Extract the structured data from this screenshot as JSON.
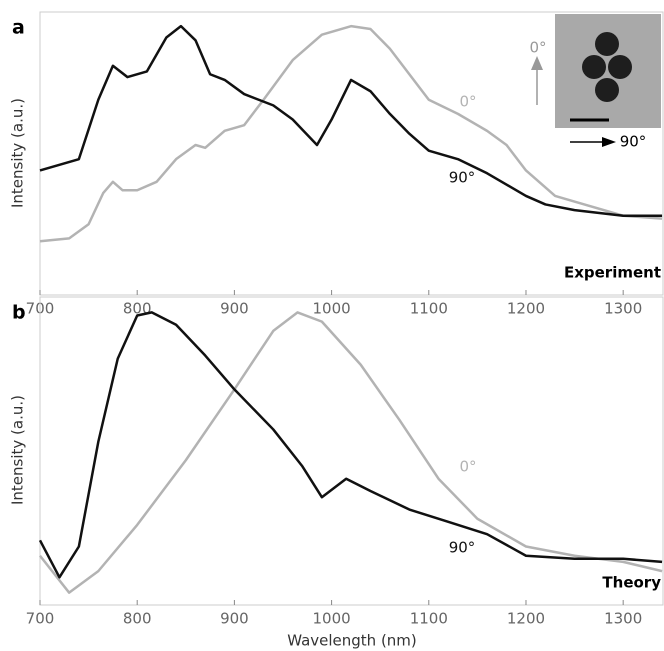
{
  "chart_data": [
    {
      "type": "line",
      "panel_label": "a",
      "annotation": "Experiment",
      "ylabel": "Intensity (a.u.)",
      "xlim": [
        700,
        1342
      ],
      "xticks": [
        700,
        800,
        900,
        1000,
        1100,
        1200,
        1300
      ],
      "ylim": [
        0,
        1
      ],
      "series": [
        {
          "name": "0°",
          "color": "#b3b3b3",
          "x": [
            700,
            730,
            750,
            765,
            775,
            785,
            800,
            820,
            840,
            860,
            870,
            890,
            910,
            930,
            960,
            990,
            1020,
            1040,
            1060,
            1080,
            1100,
            1130,
            1160,
            1180,
            1200,
            1230,
            1260,
            1300,
            1340
          ],
          "values": [
            0.19,
            0.2,
            0.25,
            0.36,
            0.4,
            0.37,
            0.37,
            0.4,
            0.48,
            0.53,
            0.52,
            0.58,
            0.6,
            0.69,
            0.83,
            0.92,
            0.95,
            0.94,
            0.87,
            0.78,
            0.69,
            0.64,
            0.58,
            0.53,
            0.44,
            0.35,
            0.32,
            0.28,
            0.27
          ]
        },
        {
          "name": "90°",
          "color": "#111111",
          "x": [
            700,
            720,
            740,
            760,
            775,
            790,
            810,
            830,
            845,
            860,
            875,
            890,
            910,
            940,
            960,
            985,
            1000,
            1020,
            1040,
            1060,
            1080,
            1100,
            1130,
            1160,
            1200,
            1220,
            1250,
            1300,
            1340
          ],
          "values": [
            0.44,
            0.46,
            0.48,
            0.69,
            0.81,
            0.77,
            0.79,
            0.91,
            0.95,
            0.9,
            0.78,
            0.76,
            0.71,
            0.67,
            0.62,
            0.53,
            0.62,
            0.76,
            0.72,
            0.64,
            0.57,
            0.51,
            0.48,
            0.43,
            0.35,
            0.32,
            0.3,
            0.28,
            0.28
          ]
        }
      ],
      "inset": {
        "vertical_label": "0°",
        "horizontal_label": "90°"
      }
    },
    {
      "type": "line",
      "panel_label": "b",
      "annotation": "Theory",
      "ylabel": "Intensity (a.u.)",
      "xlabel": "Wavelength (nm)",
      "xlim": [
        700,
        1342
      ],
      "xticks": [
        700,
        800,
        900,
        1000,
        1100,
        1200,
        1300
      ],
      "ylim": [
        0,
        1
      ],
      "series": [
        {
          "name": "0°",
          "color": "#b3b3b3",
          "x": [
            700,
            730,
            760,
            800,
            850,
            900,
            940,
            965,
            990,
            1030,
            1070,
            1110,
            1150,
            1200,
            1250,
            1300,
            1340
          ],
          "values": [
            0.16,
            0.04,
            0.11,
            0.26,
            0.47,
            0.7,
            0.89,
            0.95,
            0.92,
            0.78,
            0.6,
            0.41,
            0.28,
            0.19,
            0.16,
            0.14,
            0.11
          ]
        },
        {
          "name": "90°",
          "color": "#111111",
          "x": [
            700,
            720,
            740,
            760,
            780,
            800,
            815,
            840,
            870,
            900,
            940,
            970,
            990,
            1015,
            1040,
            1080,
            1120,
            1160,
            1200,
            1250,
            1300,
            1340
          ],
          "values": [
            0.21,
            0.09,
            0.19,
            0.53,
            0.8,
            0.94,
            0.95,
            0.91,
            0.81,
            0.7,
            0.57,
            0.45,
            0.35,
            0.41,
            0.37,
            0.31,
            0.27,
            0.23,
            0.16,
            0.15,
            0.15,
            0.14
          ]
        }
      ]
    }
  ]
}
